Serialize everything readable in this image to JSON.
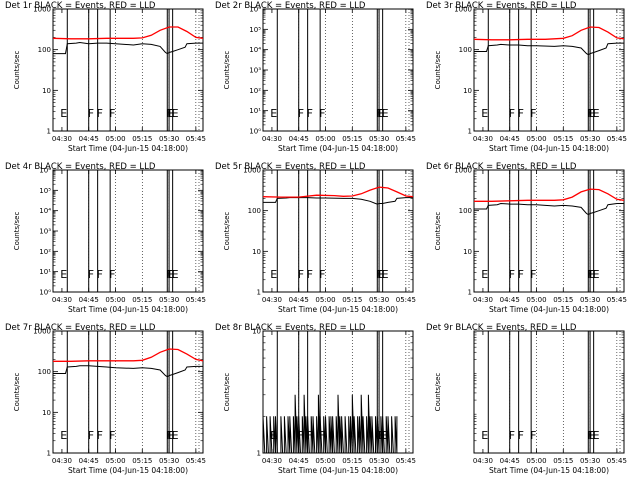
{
  "chart_data": [
    {
      "type": "line",
      "title": "Det 1r  BLACK = Events, RED = LLD",
      "ylabel": "Counts/sec",
      "xlabel": "Start Time (04-Jun-15 04:18:00)",
      "yscale": "log",
      "ylim": [
        1,
        1000
      ],
      "ytick_labels": [
        "1",
        "10",
        "100",
        "1000"
      ],
      "xtick_labels": [
        "04:30",
        "04:45",
        "05:00",
        "05:15",
        "05:30",
        "05:45"
      ],
      "xlim": [
        25,
        109
      ],
      "legend": "title",
      "colors": {
        "events": "#000000",
        "lld": "#ff0000"
      },
      "transitions": [
        {
          "t": 33,
          "label": "E"
        },
        {
          "t": 45,
          "label": "F"
        },
        {
          "t": 50,
          "label": "F"
        },
        {
          "t": 57,
          "label": "F"
        },
        {
          "t": 89,
          "label": "F"
        },
        {
          "t": 90,
          "label": "E"
        },
        {
          "t": 92,
          "label": "E"
        }
      ],
      "series": [
        {
          "name": "Events",
          "x": [
            25,
            32,
            33,
            38,
            40,
            45,
            50,
            55,
            60,
            70,
            75,
            80,
            85,
            88,
            89,
            90,
            92,
            95,
            99,
            100,
            105,
            109
          ],
          "y": [
            80,
            80,
            140,
            145,
            150,
            140,
            145,
            145,
            140,
            130,
            140,
            135,
            120,
            85,
            80,
            85,
            90,
            100,
            115,
            140,
            145,
            145
          ]
        },
        {
          "name": "LLD",
          "x": [
            25,
            35,
            45,
            55,
            65,
            70,
            75,
            80,
            85,
            90,
            95,
            100,
            105,
            109
          ],
          "y": [
            190,
            185,
            185,
            190,
            190,
            190,
            195,
            225,
            300,
            360,
            360,
            280,
            200,
            190
          ]
        }
      ]
    },
    {
      "type": "line",
      "title": "Det 2r  BLACK = Events, RED = LLD",
      "ylabel": "Counts/sec",
      "xlabel": "Start Time (04-Jun-15 04:18:00)",
      "yscale": "log",
      "ylim": [
        1,
        1000000
      ],
      "ytick_labels": [
        "10⁰",
        "10¹",
        "10²",
        "10³",
        "10⁴",
        "10⁵",
        "10⁶"
      ],
      "xtick_labels": [
        "04:30",
        "04:45",
        "05:00",
        "05:15",
        "05:30",
        "05:45"
      ],
      "xlim": [
        25,
        109
      ],
      "legend": "title",
      "colors": {
        "events": "#000000",
        "lld": "#ff0000"
      },
      "transitions": [
        {
          "t": 33,
          "label": "E"
        },
        {
          "t": 45,
          "label": "F"
        },
        {
          "t": 50,
          "label": "F"
        },
        {
          "t": 57,
          "label": "F"
        },
        {
          "t": 89,
          "label": "F"
        },
        {
          "t": 90,
          "label": "E"
        },
        {
          "t": 92,
          "label": "E"
        }
      ],
      "series": []
    },
    {
      "type": "line",
      "title": "Det 3r  BLACK = Events, RED = LLD",
      "ylabel": "Counts/sec",
      "xlabel": "Start Time (04-Jun-15 04:18:00)",
      "yscale": "log",
      "ylim": [
        1,
        1000
      ],
      "ytick_labels": [
        "1",
        "10",
        "100",
        "1000"
      ],
      "xtick_labels": [
        "04:30",
        "04:45",
        "05:00",
        "05:15",
        "05:30",
        "05:45"
      ],
      "xlim": [
        25,
        109
      ],
      "legend": "title",
      "colors": {
        "events": "#000000",
        "lld": "#ff0000"
      },
      "transitions": [
        {
          "t": 33,
          "label": "E"
        },
        {
          "t": 45,
          "label": "F"
        },
        {
          "t": 50,
          "label": "F"
        },
        {
          "t": 57,
          "label": "F"
        },
        {
          "t": 89,
          "label": "F"
        },
        {
          "t": 90,
          "label": "E"
        },
        {
          "t": 92,
          "label": "E"
        }
      ],
      "series": [
        {
          "name": "Events",
          "x": [
            25,
            32,
            33,
            38,
            40,
            45,
            50,
            55,
            60,
            70,
            75,
            80,
            85,
            88,
            89,
            90,
            92,
            95,
            99,
            100,
            105,
            109
          ],
          "y": [
            90,
            90,
            125,
            130,
            135,
            130,
            130,
            125,
            125,
            120,
            125,
            120,
            110,
            80,
            75,
            80,
            85,
            95,
            110,
            140,
            145,
            145
          ]
        },
        {
          "name": "LLD",
          "x": [
            25,
            35,
            45,
            55,
            65,
            70,
            75,
            80,
            85,
            90,
            95,
            100,
            105,
            109
          ],
          "y": [
            180,
            175,
            175,
            180,
            180,
            185,
            190,
            220,
            300,
            360,
            350,
            270,
            195,
            185
          ]
        }
      ]
    },
    {
      "type": "line",
      "title": "Det 4r  BLACK = Events, RED = LLD",
      "ylabel": "Counts/sec",
      "xlabel": "Start Time (04-Jun-15 04:18:00)",
      "yscale": "log",
      "ylim": [
        1,
        1000000
      ],
      "ytick_labels": [
        "10⁰",
        "10¹",
        "10²",
        "10³",
        "10⁴",
        "10⁵",
        "10⁶"
      ],
      "xtick_labels": [
        "04:30",
        "04:45",
        "05:00",
        "05:15",
        "05:30",
        "05:45"
      ],
      "xlim": [
        25,
        109
      ],
      "legend": "title",
      "colors": {
        "events": "#000000",
        "lld": "#ff0000"
      },
      "transitions": [
        {
          "t": 33,
          "label": "E"
        },
        {
          "t": 45,
          "label": "F"
        },
        {
          "t": 50,
          "label": "F"
        },
        {
          "t": 57,
          "label": "F"
        },
        {
          "t": 89,
          "label": "F"
        },
        {
          "t": 90,
          "label": "E"
        },
        {
          "t": 92,
          "label": "E"
        }
      ],
      "series": []
    },
    {
      "type": "line",
      "title": "Det 5r  BLACK = Events, RED = LLD",
      "ylabel": "Counts/sec",
      "xlabel": "Start Time (04-Jun-15 04:18:00)",
      "yscale": "log",
      "ylim": [
        1,
        1000
      ],
      "ytick_labels": [
        "1",
        "10",
        "100",
        "1000"
      ],
      "xtick_labels": [
        "04:30",
        "04:45",
        "05:00",
        "05:15",
        "05:30",
        "05:45"
      ],
      "xlim": [
        25,
        109
      ],
      "legend": "title",
      "colors": {
        "events": "#000000",
        "lld": "#ff0000"
      },
      "transitions": [
        {
          "t": 33,
          "label": "E"
        },
        {
          "t": 45,
          "label": "F"
        },
        {
          "t": 50,
          "label": "F"
        },
        {
          "t": 57,
          "label": "F"
        },
        {
          "t": 89,
          "label": "F"
        },
        {
          "t": 90,
          "label": "E"
        },
        {
          "t": 92,
          "label": "E"
        }
      ],
      "series": [
        {
          "name": "Events",
          "x": [
            25,
            32,
            33,
            38,
            40,
            45,
            50,
            55,
            60,
            70,
            75,
            80,
            85,
            88,
            89,
            90,
            92,
            95,
            99,
            100,
            105,
            109
          ],
          "y": [
            160,
            160,
            200,
            205,
            210,
            210,
            210,
            205,
            205,
            200,
            200,
            190,
            170,
            150,
            145,
            150,
            150,
            160,
            170,
            200,
            210,
            210
          ]
        },
        {
          "name": "LLD",
          "x": [
            25,
            35,
            45,
            55,
            65,
            70,
            75,
            80,
            85,
            90,
            95,
            100,
            105,
            109
          ],
          "y": [
            220,
            215,
            215,
            240,
            235,
            225,
            230,
            260,
            320,
            380,
            360,
            290,
            230,
            220
          ]
        }
      ]
    },
    {
      "type": "line",
      "title": "Det 6r  BLACK = Events, RED = LLD",
      "ylabel": "Counts/sec",
      "xlabel": "Start Time (04-Jun-15 04:18:00)",
      "yscale": "log",
      "ylim": [
        1,
        1000
      ],
      "ytick_labels": [
        "1",
        "10",
        "100",
        "1000"
      ],
      "xtick_labels": [
        "04:30",
        "04:45",
        "05:00",
        "05:15",
        "05:30",
        "05:45"
      ],
      "xlim": [
        25,
        109
      ],
      "legend": "title",
      "colors": {
        "events": "#000000",
        "lld": "#ff0000"
      },
      "transitions": [
        {
          "t": 33,
          "label": "E"
        },
        {
          "t": 45,
          "label": "F"
        },
        {
          "t": 50,
          "label": "F"
        },
        {
          "t": 57,
          "label": "F"
        },
        {
          "t": 89,
          "label": "F"
        },
        {
          "t": 90,
          "label": "E"
        },
        {
          "t": 92,
          "label": "E"
        }
      ],
      "series": [
        {
          "name": "Events",
          "x": [
            25,
            32,
            33,
            38,
            40,
            45,
            50,
            55,
            60,
            70,
            75,
            80,
            85,
            88,
            89,
            90,
            92,
            95,
            99,
            100,
            105,
            109
          ],
          "y": [
            110,
            110,
            135,
            140,
            150,
            145,
            145,
            140,
            140,
            130,
            135,
            130,
            120,
            85,
            80,
            85,
            90,
            100,
            115,
            140,
            150,
            150
          ]
        },
        {
          "name": "LLD",
          "x": [
            25,
            35,
            45,
            55,
            65,
            70,
            75,
            80,
            85,
            90,
            95,
            100,
            105,
            109
          ],
          "y": [
            170,
            170,
            175,
            180,
            180,
            180,
            185,
            215,
            290,
            340,
            330,
            260,
            190,
            180
          ]
        }
      ]
    },
    {
      "type": "line",
      "title": "Det 7r  BLACK = Events, RED = LLD",
      "ylabel": "Counts/sec",
      "xlabel": "Start Time (04-Jun-15 04:18:00)",
      "yscale": "log",
      "ylim": [
        1,
        1000
      ],
      "ytick_labels": [
        "1",
        "10",
        "100",
        "1000"
      ],
      "xtick_labels": [
        "04:30",
        "04:45",
        "05:00",
        "05:15",
        "05:30",
        "05:45"
      ],
      "xlim": [
        25,
        109
      ],
      "legend": "title",
      "colors": {
        "events": "#000000",
        "lld": "#ff0000"
      },
      "transitions": [
        {
          "t": 33,
          "label": "E"
        },
        {
          "t": 45,
          "label": "F"
        },
        {
          "t": 50,
          "label": "F"
        },
        {
          "t": 57,
          "label": "F"
        },
        {
          "t": 89,
          "label": "F"
        },
        {
          "t": 90,
          "label": "E"
        },
        {
          "t": 92,
          "label": "E"
        }
      ],
      "series": [
        {
          "name": "Events",
          "x": [
            25,
            32,
            33,
            38,
            40,
            45,
            50,
            55,
            60,
            70,
            75,
            80,
            85,
            88,
            89,
            90,
            92,
            95,
            99,
            100,
            105,
            109
          ],
          "y": [
            90,
            90,
            130,
            135,
            140,
            140,
            135,
            130,
            125,
            120,
            125,
            120,
            110,
            80,
            75,
            80,
            85,
            95,
            110,
            130,
            135,
            135
          ]
        },
        {
          "name": "LLD",
          "x": [
            25,
            35,
            45,
            55,
            65,
            70,
            75,
            80,
            85,
            90,
            95,
            100,
            105,
            109
          ],
          "y": [
            180,
            180,
            185,
            185,
            185,
            185,
            190,
            225,
            300,
            360,
            350,
            270,
            200,
            185
          ]
        }
      ]
    },
    {
      "type": "line",
      "title": "Det 8r  BLACK = Events, RED = LLD",
      "ylabel": "Counts/sec",
      "xlabel": "Start Time (04-Jun-15 04:18:00)",
      "yscale": "log",
      "ylim": [
        1,
        10
      ],
      "ytick_labels": [
        "1",
        "10"
      ],
      "xtick_labels": [
        "04:30",
        "04:45",
        "05:00",
        "05:15",
        "05:30",
        "05:45"
      ],
      "xlim": [
        25,
        109
      ],
      "legend": "title",
      "colors": {
        "events": "#000000",
        "lld": "#ff0000"
      },
      "transitions": [
        {
          "t": 33,
          "label": "E"
        },
        {
          "t": 45,
          "label": "F"
        },
        {
          "t": 50,
          "label": "F"
        },
        {
          "t": 57,
          "label": "F"
        },
        {
          "t": 89,
          "label": "F"
        },
        {
          "t": 90,
          "label": "E"
        },
        {
          "t": 92,
          "label": "E"
        }
      ],
      "series": [
        {
          "name": "Events",
          "x": [
            25,
            26,
            27,
            28,
            29,
            30,
            31,
            32,
            33,
            34,
            35,
            36,
            37,
            38,
            39,
            40,
            41,
            42,
            43,
            44,
            45,
            46,
            47,
            48,
            49,
            50,
            51,
            52,
            53,
            54,
            55,
            56,
            57,
            58,
            59,
            60,
            61,
            62,
            63,
            64,
            65,
            66,
            67,
            68,
            69,
            70,
            71,
            72,
            73,
            74,
            75,
            76,
            77,
            78,
            79,
            80,
            81,
            82,
            83,
            84,
            85,
            86,
            87,
            88,
            89,
            90,
            91,
            92,
            93,
            94,
            95,
            96,
            97,
            98,
            99,
            100
          ],
          "y": [
            2,
            1,
            2,
            1,
            2,
            1,
            2,
            2,
            1,
            1,
            2,
            1,
            2,
            1,
            2,
            2,
            1,
            2,
            3,
            2,
            2,
            1,
            2,
            3,
            2,
            2,
            1,
            2,
            2,
            1,
            2,
            3,
            2,
            1,
            2,
            2,
            1,
            2,
            2,
            2,
            1,
            2,
            3,
            2,
            2,
            1,
            2,
            1,
            2,
            2,
            3,
            2,
            1,
            2,
            2,
            3,
            2,
            1,
            2,
            3,
            2,
            2,
            1,
            2,
            2,
            1,
            2,
            2,
            1,
            2,
            2,
            1,
            2,
            1,
            2,
            2
          ]
        },
        {
          "name": "LLD",
          "x": [],
          "y": []
        }
      ]
    },
    {
      "type": "line",
      "title": "Det 9r  BLACK = Events, RED = LLD",
      "ylabel": "Counts/sec",
      "xlabel": "Start Time (04-Jun-15 04:18:00)",
      "yscale": "log",
      "ylim": [
        1,
        1000
      ],
      "ytick_labels": [],
      "xtick_labels": [
        "04:30",
        "04:45",
        "05:00",
        "05:15",
        "05:30",
        "05:45"
      ],
      "xlim": [
        25,
        109
      ],
      "legend": "title",
      "colors": {
        "events": "#000000",
        "lld": "#ff0000"
      },
      "transitions": [
        {
          "t": 33,
          "label": "E"
        },
        {
          "t": 45,
          "label": "F"
        },
        {
          "t": 50,
          "label": "F"
        },
        {
          "t": 57,
          "label": "F"
        },
        {
          "t": 89,
          "label": "F"
        },
        {
          "t": 90,
          "label": "E"
        },
        {
          "t": 92,
          "label": "E"
        }
      ],
      "series": []
    }
  ]
}
